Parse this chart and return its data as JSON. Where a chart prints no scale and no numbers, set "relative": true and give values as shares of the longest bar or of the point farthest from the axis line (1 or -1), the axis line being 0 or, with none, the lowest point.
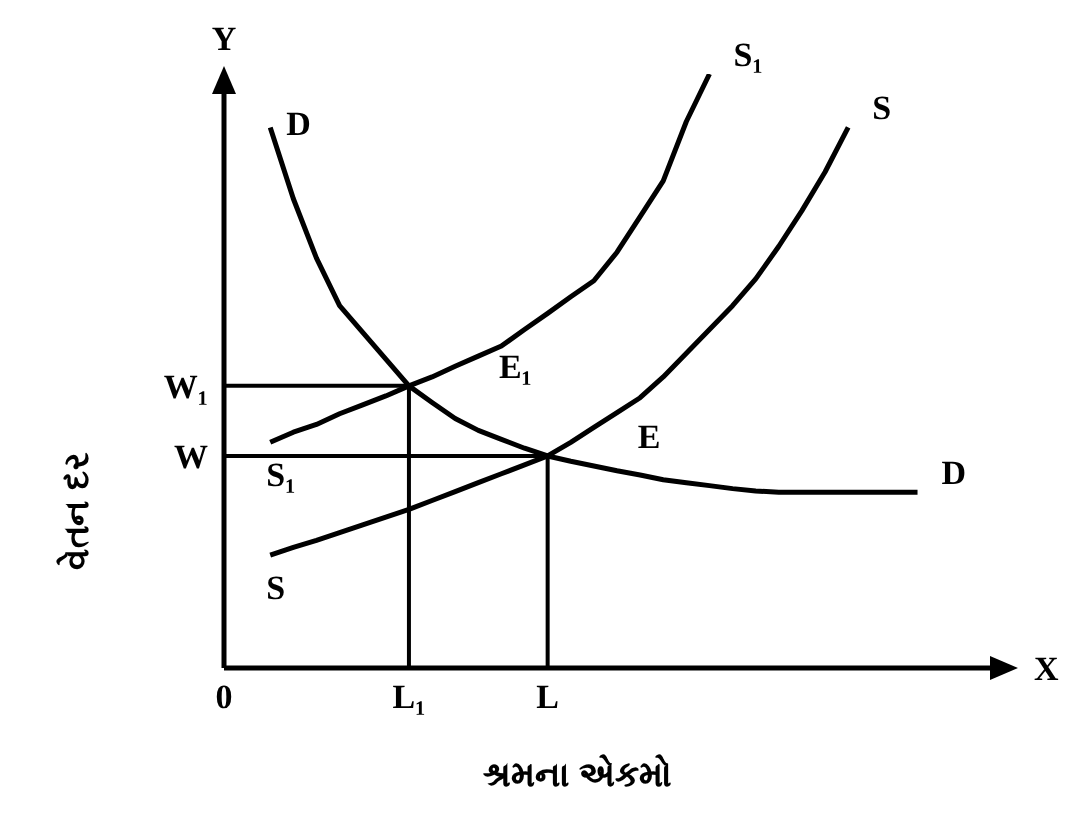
{
  "chart_data": {
    "type": "line",
    "relative": true,
    "xlabel": "શ્રમના એકમો",
    "ylabel": "વેતન દર",
    "categories": [
      "0",
      null,
      null,
      null,
      null,
      null,
      null,
      null,
      "L₁",
      null,
      null,
      null,
      null,
      null,
      "L",
      null,
      null,
      null,
      null,
      null,
      null,
      null,
      null,
      null,
      null,
      null,
      null,
      null,
      null,
      null,
      null,
      null,
      null,
      null,
      null
    ],
    "series": [
      {
        "name": "D",
        "color": "#000000",
        "values": [
          null,
          null,
          0.91,
          0.79,
          0.69,
          0.61,
          0.565,
          0.52,
          0.475,
          0.447,
          0.42,
          0.4,
          0.385,
          0.37,
          0.357,
          0.348,
          0.34,
          0.332,
          0.325,
          0.317,
          0.312,
          0.307,
          0.302,
          0.298,
          0.296,
          0.296,
          0.296,
          0.296,
          0.296,
          0.296,
          0.296,
          null,
          null,
          null,
          null
        ]
      },
      {
        "name": "S₁",
        "color": "#000000",
        "values": [
          null,
          null,
          0.38,
          0.397,
          0.41,
          0.428,
          0.443,
          0.458,
          0.475,
          0.49,
          0.508,
          0.525,
          0.542,
          0.57,
          0.597,
          0.625,
          0.652,
          0.7,
          0.76,
          0.82,
          0.92,
          1,
          null,
          null,
          null,
          null,
          null,
          null,
          null,
          null,
          null,
          null,
          null,
          null,
          null
        ]
      },
      {
        "name": "S",
        "color": "#000000",
        "values": [
          null,
          null,
          0.19,
          0.203,
          0.215,
          0.228,
          0.241,
          0.254,
          0.267,
          0.282,
          0.297,
          0.312,
          0.327,
          0.342,
          0.357,
          0.38,
          0.405,
          0.43,
          0.455,
          0.49,
          0.53,
          0.57,
          0.61,
          0.655,
          0.71,
          0.77,
          0.835,
          0.91,
          null,
          null,
          null,
          null,
          null,
          null,
          null
        ]
      }
    ],
    "ref_lines": [
      {
        "axis": "y",
        "value": 0.475,
        "label": "W₁",
        "color": "#000000"
      },
      {
        "axis": "y",
        "value": 0.357,
        "label": "W",
        "color": "#000000"
      },
      {
        "axis": "x",
        "value": "L₁",
        "color": "#000000"
      },
      {
        "axis": "x",
        "value": "L",
        "color": "#000000"
      }
    ],
    "annotations": [
      "Y",
      "X",
      {
        "text": "E₁",
        "x": "L₁",
        "y": 0.475
      },
      {
        "text": "E",
        "x": "L",
        "y": 0.357
      }
    ],
    "grid": false,
    "legend": false,
    "marker": "none"
  }
}
